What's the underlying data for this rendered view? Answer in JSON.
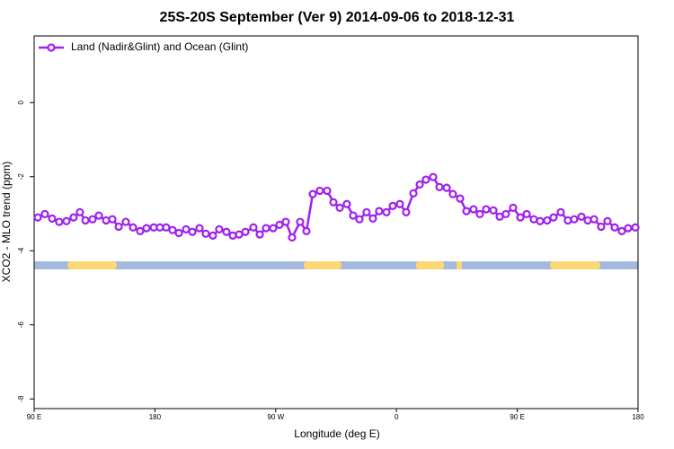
{
  "chart_data": {
    "type": "line",
    "title": "25S-20S September (Ver 9)   2014-09-06 to 2018-12-31",
    "xlabel": "Longitude (deg E)",
    "ylabel": "XCO2 - MLO trend (ppm)",
    "legend": "top-left",
    "xlim": [
      90,
      540
    ],
    "ylim": [
      -8.26,
      1.8
    ],
    "xticks": [
      {
        "value": 90,
        "label": "90 E"
      },
      {
        "value": 180,
        "label": "180"
      },
      {
        "value": 270,
        "label": "90 W"
      },
      {
        "value": 360,
        "label": "0"
      },
      {
        "value": 450,
        "label": "90 E"
      },
      {
        "value": 540,
        "label": "180"
      }
    ],
    "yticks": [
      0,
      -2,
      -4,
      -6,
      -8
    ],
    "series": [
      {
        "name": "Land (Nadir&Glint) and Ocean (Glint)",
        "color": "#a020f0",
        "x": [
          92.7,
          98.0,
          103.4,
          108.7,
          114.1,
          119.4,
          124.1,
          128.2,
          133.5,
          138.2,
          143.6,
          148.3,
          153.0,
          158.3,
          163.7,
          169.0,
          173.7,
          179.1,
          183.7,
          188.4,
          193.1,
          197.8,
          203.2,
          207.9,
          213.2,
          217.9,
          223.2,
          227.9,
          233.3,
          238.0,
          242.7,
          247.4,
          253.4,
          258.1,
          262.8,
          268.1,
          272.8,
          277.5,
          282.2,
          288.2,
          292.9,
          297.6,
          302.9,
          308.3,
          313.0,
          317.7,
          323.0,
          327.7,
          332.4,
          337.7,
          342.4,
          347.1,
          352.5,
          357.2,
          362.5,
          367.2,
          372.6,
          377.3,
          381.9,
          387.3,
          392.0,
          397.4,
          402.0,
          407.4,
          412.1,
          417.4,
          422.1,
          426.8,
          432.2,
          436.9,
          441.5,
          446.9,
          452.3,
          457.0,
          462.3,
          467.0,
          472.3,
          477.0,
          482.4,
          487.7,
          492.4,
          497.8,
          502.5,
          507.2,
          512.5,
          517.2,
          522.6,
          527.9,
          532.6,
          538.0
        ],
        "values": [
          -3.1,
          -3.01,
          -3.13,
          -3.22,
          -3.2,
          -3.1,
          -2.96,
          -3.18,
          -3.15,
          -3.05,
          -3.18,
          -3.15,
          -3.35,
          -3.22,
          -3.37,
          -3.47,
          -3.39,
          -3.37,
          -3.37,
          -3.37,
          -3.44,
          -3.52,
          -3.42,
          -3.49,
          -3.39,
          -3.54,
          -3.59,
          -3.42,
          -3.49,
          -3.59,
          -3.56,
          -3.49,
          -3.37,
          -3.56,
          -3.39,
          -3.39,
          -3.3,
          -3.22,
          -3.64,
          -3.22,
          -3.47,
          -2.47,
          -2.38,
          -2.38,
          -2.69,
          -2.84,
          -2.74,
          -3.05,
          -3.15,
          -2.96,
          -3.13,
          -2.93,
          -2.96,
          -2.79,
          -2.74,
          -2.96,
          -2.45,
          -2.21,
          -2.08,
          -2.01,
          -2.28,
          -2.3,
          -2.47,
          -2.59,
          -2.93,
          -2.88,
          -3.01,
          -2.88,
          -2.91,
          -3.08,
          -3.01,
          -2.84,
          -3.1,
          -3.01,
          -3.15,
          -3.2,
          -3.18,
          -3.1,
          -2.96,
          -3.18,
          -3.15,
          -3.08,
          -3.18,
          -3.15,
          -3.35,
          -3.2,
          -3.37,
          -3.47,
          -3.39,
          -3.37
        ]
      }
    ]
  }
}
